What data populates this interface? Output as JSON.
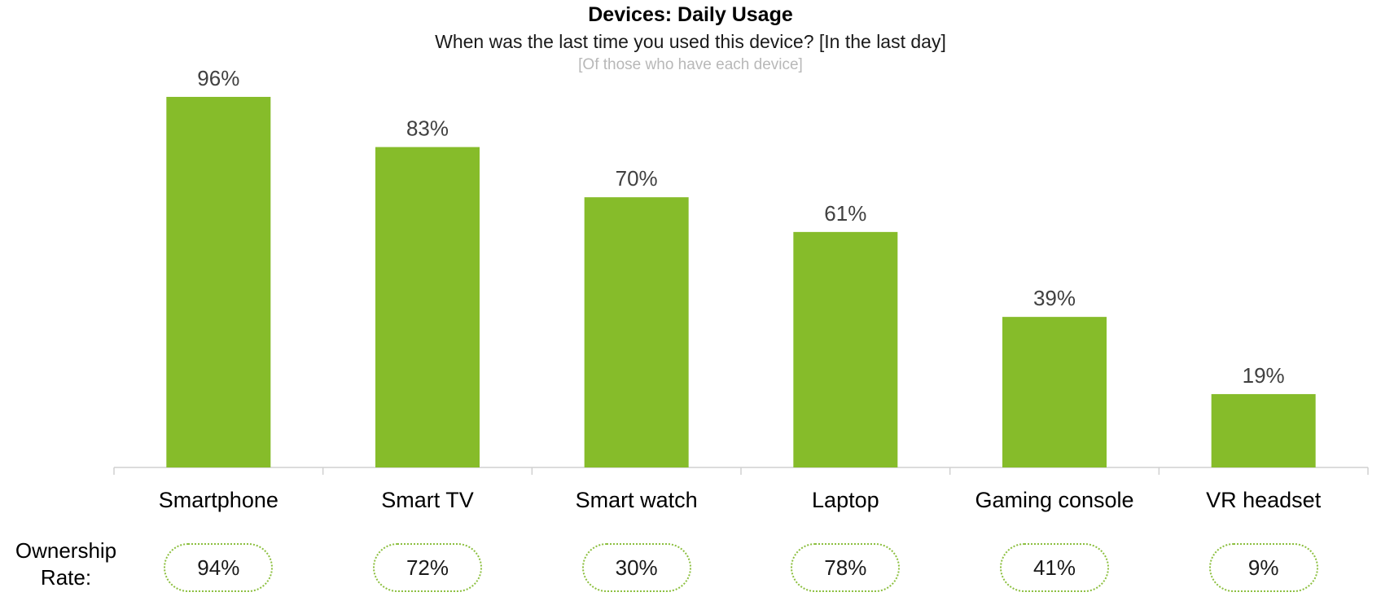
{
  "chart_data": {
    "type": "bar",
    "title": "Devices: Daily Usage",
    "subtitle": "When was the last time you used this device? [In the last day]",
    "note": "[Of those who have each device]",
    "categories": [
      "Smartphone",
      "Smart TV",
      "Smart watch",
      "Laptop",
      "Gaming console",
      "VR headset"
    ],
    "values": [
      96,
      83,
      70,
      61,
      39,
      19
    ],
    "value_labels": [
      "96%",
      "83%",
      "70%",
      "61%",
      "39%",
      "19%"
    ],
    "ylim": [
      0,
      100
    ],
    "grid": false,
    "bar_color": "#86bc2a",
    "ownership": {
      "label_line1": "Ownership",
      "label_line2": "Rate:",
      "values": [
        "94%",
        "72%",
        "30%",
        "78%",
        "41%",
        "9%"
      ]
    }
  }
}
